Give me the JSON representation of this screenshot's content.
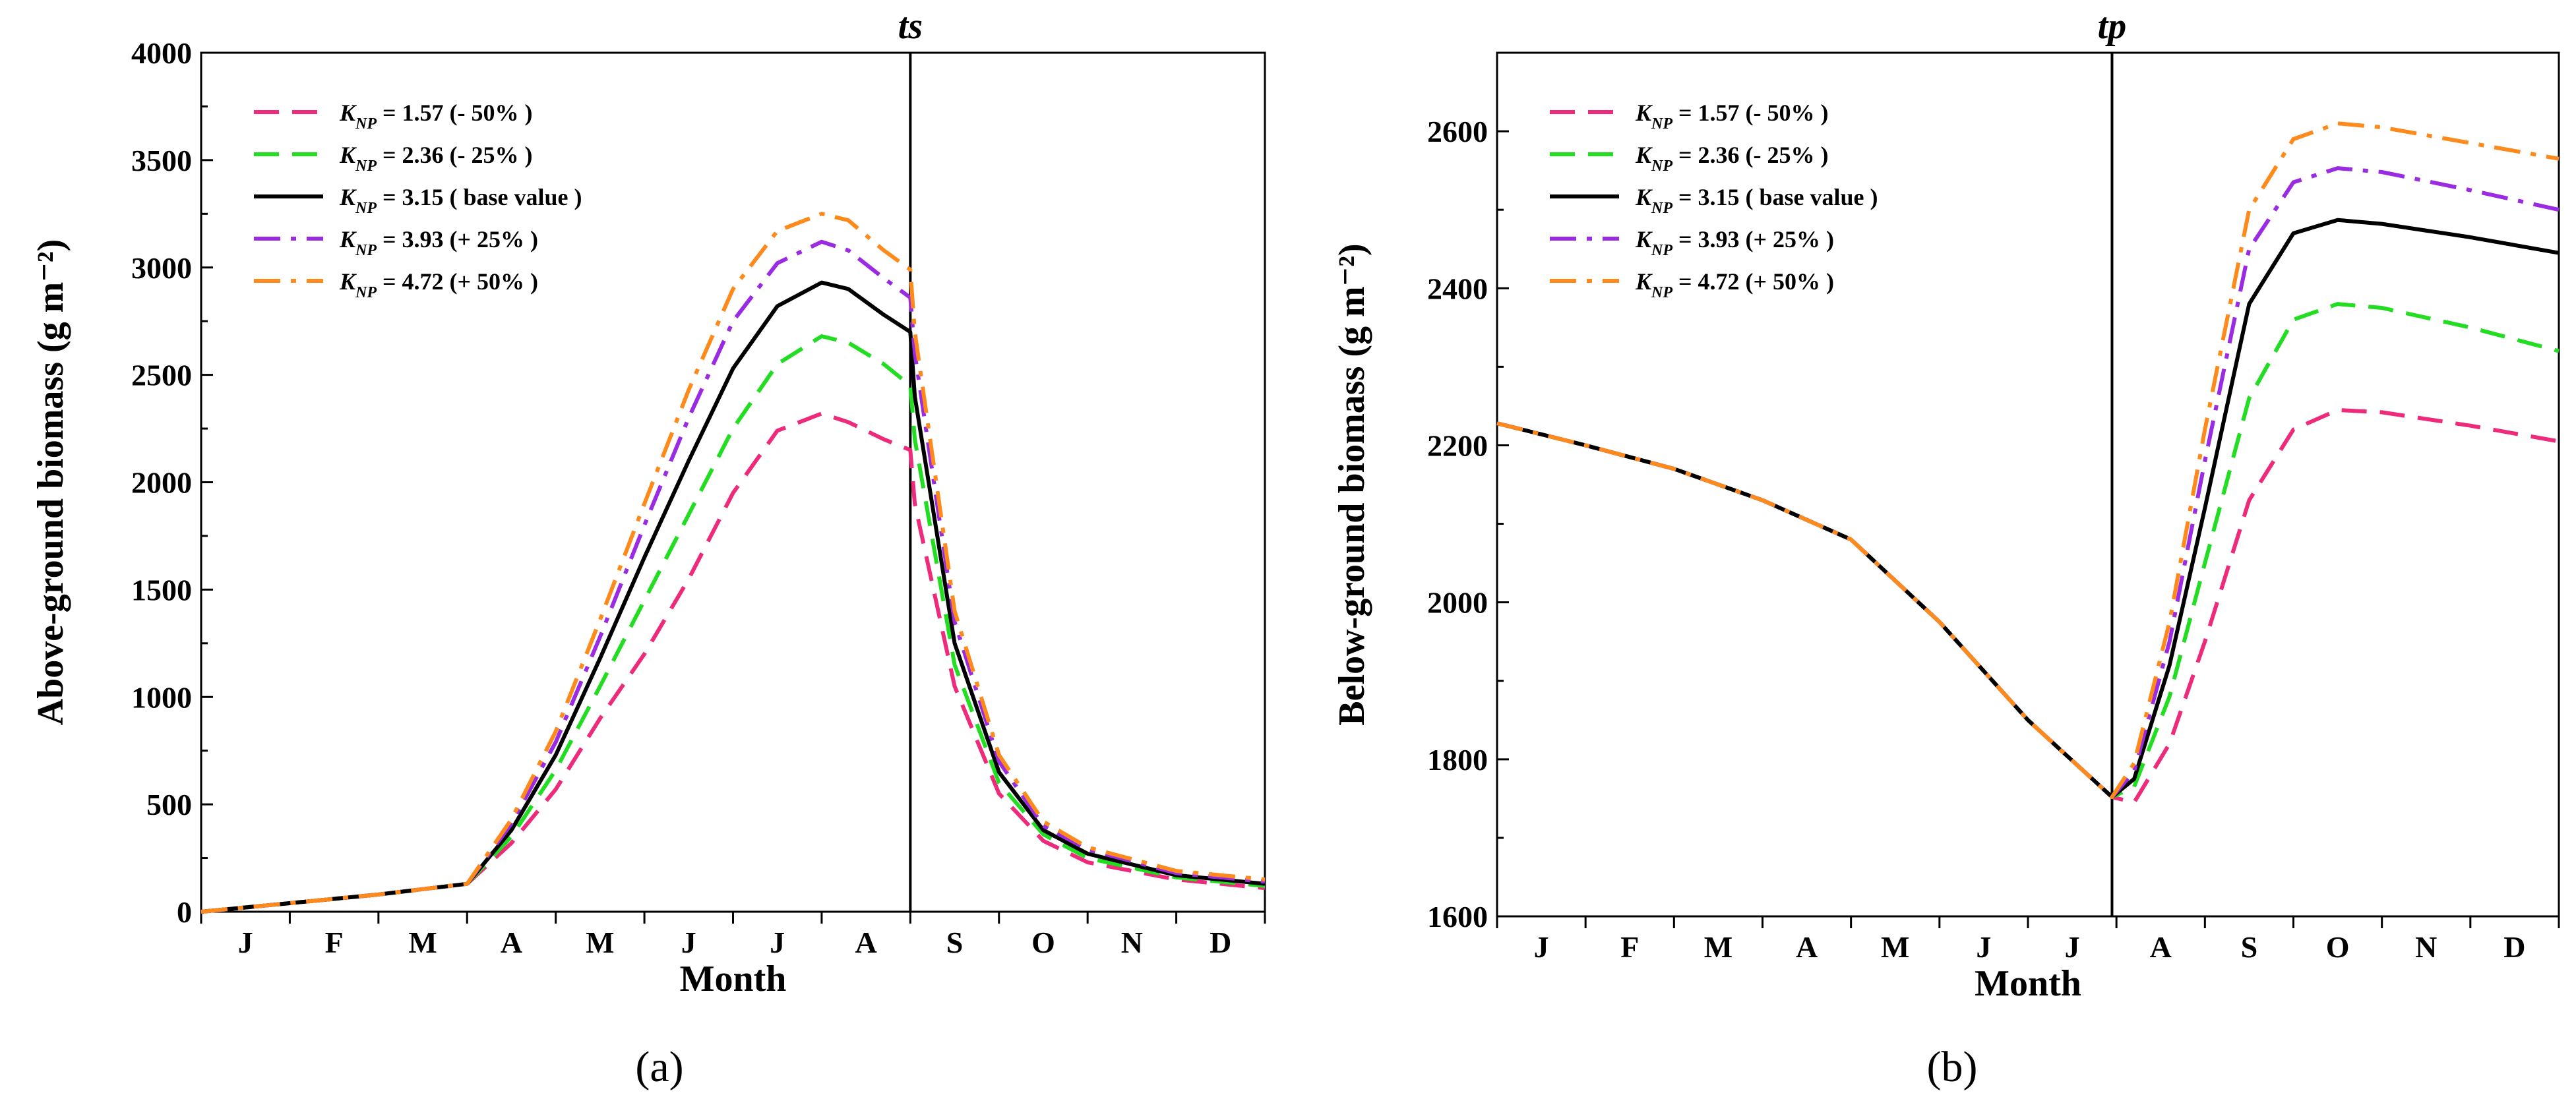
{
  "chart_data": [
    {
      "type": "line",
      "panel_label": "(a)",
      "title": "ts",
      "xlabel": "Month",
      "ylabel": "Above-ground biomass (g m⁻²)",
      "ylim": [
        0,
        4000
      ],
      "y_ticks": [
        0,
        500,
        1000,
        1500,
        2000,
        2500,
        3000,
        3500,
        4000
      ],
      "xlim": [
        0,
        12
      ],
      "month_labels": [
        "J",
        "F",
        "M",
        "A",
        "M",
        "J",
        "J",
        "A",
        "S",
        "O",
        "N",
        "D"
      ],
      "vline_x": 8,
      "legend_position": "top-left",
      "x": [
        0,
        1,
        2,
        3,
        3.5,
        4,
        4.5,
        5,
        5.5,
        6,
        6.5,
        7,
        7.3,
        7.7,
        8,
        8.05,
        8.5,
        9,
        9.5,
        10,
        11,
        12
      ],
      "series": [
        {
          "name": "K_NP = 1.57 (- 50% )",
          "k_label": "K",
          "k_sub": "NP",
          "k_text": " = 1.57 (- 50% )",
          "color": "#ee2a7b",
          "dash": "dashed",
          "values": [
            0,
            40,
            80,
            130,
            320,
            570,
            900,
            1200,
            1550,
            1950,
            2240,
            2320,
            2280,
            2200,
            2150,
            1900,
            1050,
            550,
            330,
            230,
            150,
            110
          ]
        },
        {
          "name": "K_NP = 2.36 (- 25% )",
          "k_label": "K",
          "k_sub": "NP",
          "k_text": " = 2.36 (- 25% )",
          "color": "#22dd22",
          "dash": "dashed",
          "values": [
            0,
            40,
            80,
            130,
            350,
            660,
            1050,
            1450,
            1850,
            2250,
            2550,
            2680,
            2650,
            2550,
            2450,
            2200,
            1150,
            600,
            360,
            250,
            160,
            120
          ]
        },
        {
          "name": "K_NP = 3.15 ( base value )",
          "k_label": "K",
          "k_sub": "NP",
          "k_text": " = 3.15 ( base value )",
          "color": "#000000",
          "dash": "solid",
          "values": [
            0,
            40,
            80,
            130,
            380,
            730,
            1180,
            1650,
            2100,
            2530,
            2820,
            2930,
            2900,
            2780,
            2700,
            2400,
            1250,
            650,
            380,
            270,
            170,
            130
          ]
        },
        {
          "name": "K_NP = 3.93 (+ 25% )",
          "k_label": "K",
          "k_sub": "NP",
          "k_text": " = 3.93 (+ 25% )",
          "color": "#9a2be2",
          "dash": "dashdot",
          "values": [
            0,
            40,
            80,
            130,
            410,
            790,
            1280,
            1800,
            2300,
            2750,
            3020,
            3120,
            3080,
            2950,
            2860,
            2600,
            1350,
            700,
            400,
            290,
            180,
            140
          ]
        },
        {
          "name": "K_NP = 4.72 (+ 50% )",
          "k_label": "K",
          "k_sub": "NP",
          "k_text": " = 4.72 (+ 50% )",
          "color": "#ff8a1c",
          "dash": "dashdot",
          "values": [
            0,
            40,
            80,
            130,
            430,
            840,
            1360,
            1900,
            2430,
            2900,
            3170,
            3250,
            3220,
            3080,
            2990,
            2700,
            1400,
            730,
            420,
            300,
            190,
            150
          ]
        }
      ]
    },
    {
      "type": "line",
      "panel_label": "(b)",
      "title": "tp",
      "xlabel": "Month",
      "ylabel": "Below-ground biomass (g m⁻²)",
      "ylim": [
        1600,
        2700
      ],
      "y_ticks": [
        1600,
        1800,
        2000,
        2200,
        2400,
        2600
      ],
      "xlim": [
        0,
        12
      ],
      "month_labels": [
        "J",
        "F",
        "M",
        "A",
        "M",
        "J",
        "J",
        "A",
        "S",
        "O",
        "N",
        "D"
      ],
      "vline_x": 6.95,
      "legend_position": "top-left",
      "x": [
        0,
        1,
        2,
        3,
        4,
        5,
        6,
        6.95,
        7.2,
        7.6,
        8,
        8.5,
        9,
        9.5,
        10,
        11,
        12
      ],
      "series": [
        {
          "name": "K_NP = 1.57 (- 50% )",
          "k_label": "K",
          "k_sub": "NP",
          "k_text": " = 1.57 (- 50% )",
          "color": "#ee2a7b",
          "dash": "dashed",
          "values": [
            2228,
            2200,
            2170,
            2130,
            2080,
            1975,
            1850,
            1752,
            1745,
            1820,
            1950,
            2130,
            2220,
            2245,
            2242,
            2225,
            2205
          ]
        },
        {
          "name": "K_NP = 2.36 (- 25% )",
          "k_label": "K",
          "k_sub": "NP",
          "k_text": " = 2.36 (- 25% )",
          "color": "#22dd22",
          "dash": "dashed",
          "values": [
            2228,
            2200,
            2170,
            2130,
            2080,
            1975,
            1850,
            1752,
            1765,
            1880,
            2050,
            2260,
            2360,
            2380,
            2375,
            2350,
            2320
          ]
        },
        {
          "name": "K_NP = 3.15 ( base value )",
          "k_label": "K",
          "k_sub": "NP",
          "k_text": " = 3.15 ( base value )",
          "color": "#000000",
          "dash": "solid",
          "values": [
            2228,
            2200,
            2170,
            2130,
            2080,
            1975,
            1850,
            1752,
            1775,
            1920,
            2120,
            2380,
            2470,
            2487,
            2482,
            2465,
            2445
          ]
        },
        {
          "name": "K_NP = 3.93 (+ 25% )",
          "k_label": "K",
          "k_sub": "NP",
          "k_text": " = 3.93 (+ 25% )",
          "color": "#9a2be2",
          "dash": "dashdot",
          "values": [
            2228,
            2200,
            2170,
            2130,
            2080,
            1975,
            1850,
            1752,
            1785,
            1950,
            2180,
            2450,
            2535,
            2553,
            2548,
            2525,
            2500
          ]
        },
        {
          "name": "K_NP = 4.72 (+ 50% )",
          "k_label": "K",
          "k_sub": "NP",
          "k_text": " = 4.72 (+ 50% )",
          "color": "#ff8a1c",
          "dash": "dashdot",
          "values": [
            2228,
            2200,
            2170,
            2130,
            2080,
            1975,
            1850,
            1752,
            1795,
            1975,
            2220,
            2500,
            2590,
            2610,
            2605,
            2585,
            2565
          ]
        }
      ]
    }
  ]
}
